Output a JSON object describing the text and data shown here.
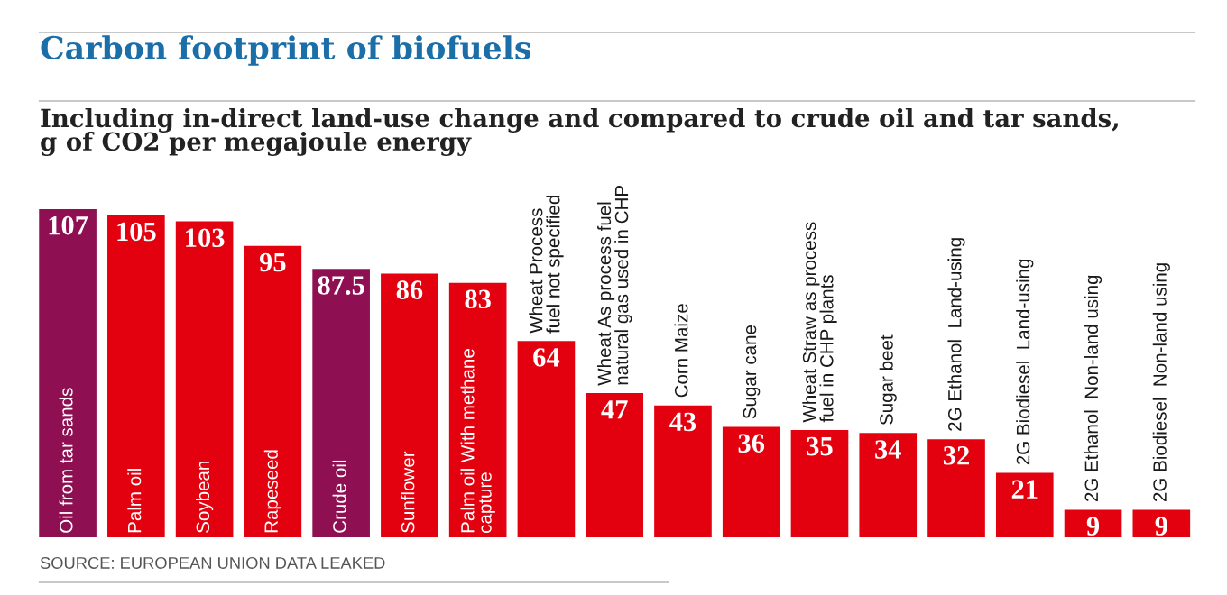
{
  "chart_data": {
    "type": "bar",
    "title": "Carbon footprint of biofuels",
    "subtitle": "Including in-direct land-use change and compared to crude oil and tar sands,\ng of CO2 per megajoule energy",
    "categories": [
      "Oil from tar sands",
      "Palm oil",
      "Soybean",
      "Rapeseed",
      "Crude oil",
      "Sunflower",
      "Palm oil With methane\ncapture",
      "Wheat Process\nfuel not specified",
      "Wheat As process fuel\nnatural gas used in CHP",
      "Corn Maize",
      "Sugar cane",
      "Wheat Straw as process\nfuel in CHP plants",
      "Sugar beet",
      "2G Ethanol  Land-using",
      "2G Biodiesel  Land-using",
      "2G Ethanol  Non-land using",
      "2G Biodiesel  Non-land using"
    ],
    "values": [
      107,
      105,
      103,
      95,
      87.5,
      86,
      83,
      64,
      47,
      43,
      36,
      35,
      34,
      32,
      21,
      9,
      9
    ],
    "colors": [
      "#8e1052",
      "#e3000f",
      "#e3000f",
      "#e3000f",
      "#8e1052",
      "#e3000f",
      "#e3000f",
      "#e3000f",
      "#e3000f",
      "#e3000f",
      "#e3000f",
      "#e3000f",
      "#e3000f",
      "#e3000f",
      "#e3000f",
      "#e3000f",
      "#e3000f"
    ],
    "data_labels": true,
    "annotations": [
      "SOURCE: EUROPEAN UNION DATA LEAKED"
    ]
  }
}
